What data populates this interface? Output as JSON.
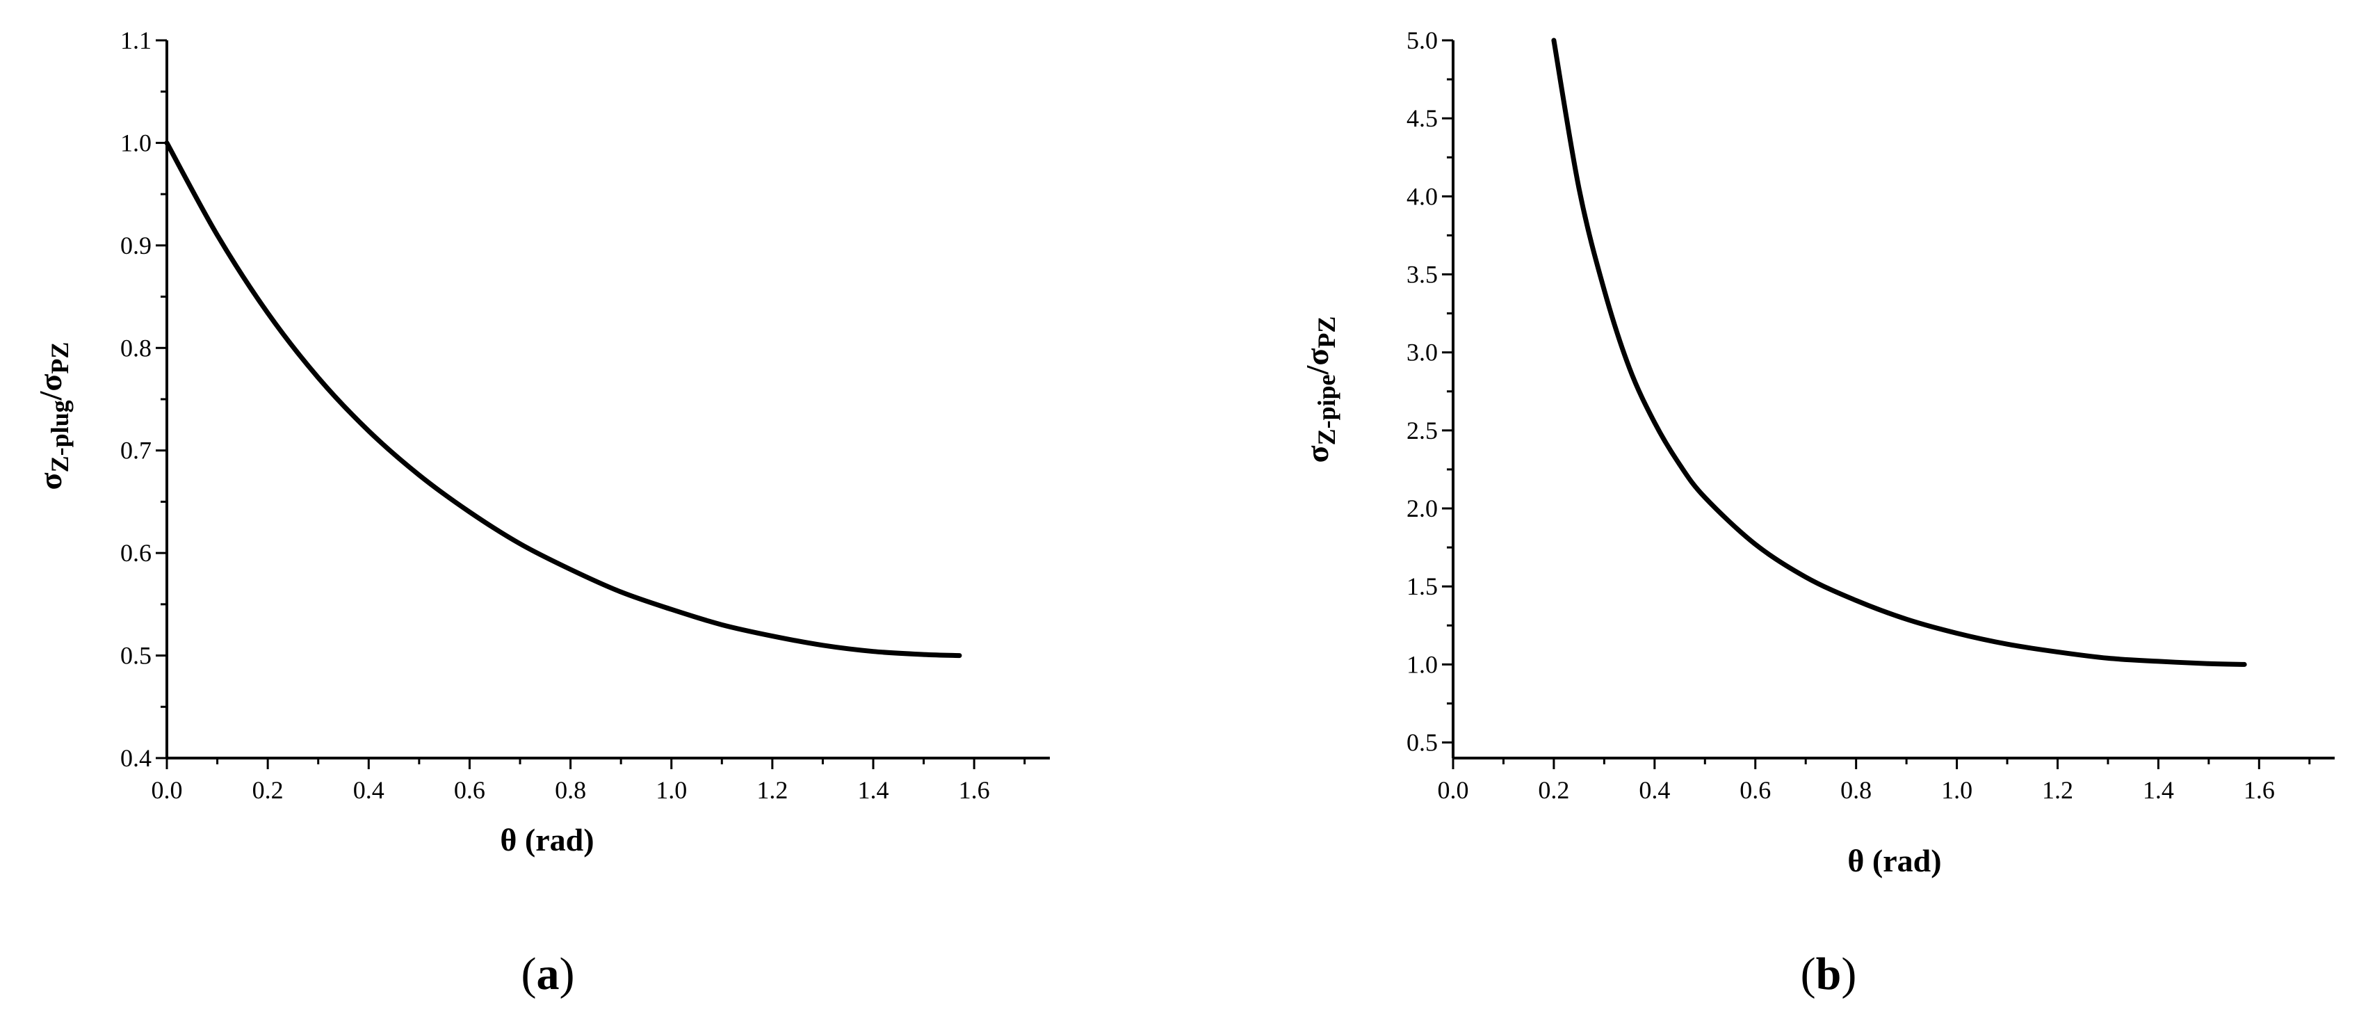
{
  "chart_data": [
    {
      "panel_label": "a",
      "type": "line",
      "xlabel": "θ (rad)",
      "ylabel": {
        "main": "σ",
        "sub1": "Z-plug",
        "slash": "/",
        "main2": "σ",
        "sub2": "PZ"
      },
      "xlim": [
        0.0,
        1.75
      ],
      "ylim": [
        0.4,
        1.1
      ],
      "xticks": [
        "0.0",
        "0.2",
        "0.4",
        "0.6",
        "0.8",
        "1.0",
        "1.2",
        "1.4",
        "1.6"
      ],
      "yticks": [
        "0.4",
        "0.5",
        "0.6",
        "0.7",
        "0.8",
        "0.9",
        "1.0",
        "1.1"
      ],
      "grid": false,
      "series": [
        {
          "x": [
            0.0,
            0.1,
            0.2,
            0.3,
            0.4,
            0.5,
            0.6,
            0.7,
            0.8,
            0.9,
            1.0,
            1.1,
            1.2,
            1.3,
            1.4,
            1.5,
            1.5708
          ],
          "y": [
            1.0,
            0.91,
            0.834,
            0.771,
            0.719,
            0.676,
            0.64,
            0.609,
            0.584,
            0.562,
            0.545,
            0.53,
            0.519,
            0.51,
            0.504,
            0.501,
            0.5
          ]
        }
      ]
    },
    {
      "panel_label": "b",
      "type": "line",
      "xlabel": "θ (rad)",
      "ylabel": {
        "main": "σ",
        "sub1": "Z-pipe",
        "slash": "/",
        "main2": "σ",
        "sub2": "PZ"
      },
      "xlim": [
        0.0,
        1.75
      ],
      "ylim": [
        0.4,
        5.0
      ],
      "xticks": [
        "0.0",
        "0.2",
        "0.4",
        "0.6",
        "0.8",
        "1.0",
        "1.2",
        "1.4",
        "1.6"
      ],
      "yticks": [
        "0.5",
        "1.0",
        "1.5",
        "2.0",
        "2.5",
        "3.0",
        "3.5",
        "4.0",
        "4.5",
        "5.0"
      ],
      "grid": false,
      "series": [
        {
          "x": [
            0.2,
            0.25,
            0.3,
            0.35,
            0.4,
            0.45,
            0.5,
            0.6,
            0.7,
            0.8,
            0.9,
            1.0,
            1.1,
            1.2,
            1.3,
            1.4,
            1.5,
            1.5708
          ],
          "y": [
            5.0,
            4.05,
            3.4,
            2.9,
            2.55,
            2.28,
            2.07,
            1.77,
            1.56,
            1.41,
            1.29,
            1.2,
            1.13,
            1.08,
            1.04,
            1.02,
            1.005,
            1.0
          ]
        }
      ]
    }
  ]
}
